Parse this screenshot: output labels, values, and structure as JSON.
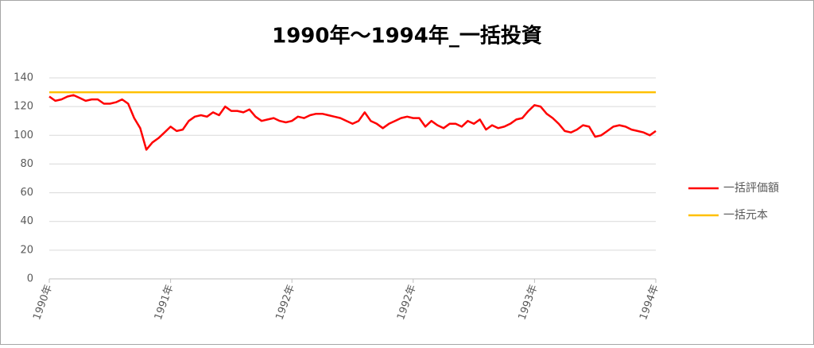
{
  "chart_data": {
    "type": "line",
    "title": "1990年～1994年_一括投資",
    "categories": [
      "1990年",
      null,
      null,
      null,
      null,
      null,
      null,
      null,
      null,
      null,
      null,
      null,
      null,
      null,
      null,
      null,
      null,
      null,
      null,
      null,
      "1991年",
      null,
      null,
      null,
      null,
      null,
      null,
      null,
      null,
      null,
      null,
      null,
      null,
      null,
      null,
      null,
      null,
      null,
      null,
      null,
      "1992年",
      null,
      null,
      null,
      null,
      null,
      null,
      null,
      null,
      null,
      null,
      null,
      null,
      null,
      null,
      null,
      null,
      null,
      null,
      null,
      "1992年",
      null,
      null,
      null,
      null,
      null,
      null,
      null,
      null,
      null,
      null,
      null,
      null,
      null,
      null,
      null,
      null,
      null,
      null,
      null,
      "1993年",
      null,
      null,
      null,
      null,
      null,
      null,
      null,
      null,
      null,
      null,
      null,
      null,
      null,
      null,
      null,
      null,
      null,
      null,
      null,
      "1994年"
    ],
    "series": [
      {
        "name": "一括評価額",
        "color": "#ff0000",
        "values": [
          127,
          124,
          125,
          127,
          128,
          126,
          124,
          125,
          125,
          122,
          122,
          123,
          125,
          122,
          112,
          105,
          90,
          95,
          98,
          102,
          106,
          103,
          104,
          110,
          113,
          114,
          113,
          116,
          114,
          120,
          117,
          117,
          116,
          118,
          113,
          110,
          111,
          112,
          110,
          109,
          110,
          113,
          112,
          114,
          115,
          115,
          114,
          113,
          112,
          110,
          108,
          110,
          116,
          110,
          108,
          105,
          108,
          110,
          112,
          113,
          112,
          112,
          106,
          110,
          107,
          105,
          108,
          108,
          106,
          110,
          108,
          111,
          104,
          107,
          105,
          106,
          108,
          111,
          112,
          117,
          121,
          120,
          115,
          112,
          108,
          103,
          102,
          104,
          107,
          106,
          99,
          100,
          103,
          106,
          107,
          106,
          104,
          103,
          102,
          100,
          103
        ]
      },
      {
        "name": "一括元本",
        "color": "#ffc000",
        "values": [
          130,
          130,
          130,
          130,
          130,
          130,
          130,
          130,
          130,
          130,
          130,
          130,
          130,
          130,
          130,
          130,
          130,
          130,
          130,
          130,
          130,
          130,
          130,
          130,
          130,
          130,
          130,
          130,
          130,
          130,
          130,
          130,
          130,
          130,
          130,
          130,
          130,
          130,
          130,
          130,
          130,
          130,
          130,
          130,
          130,
          130,
          130,
          130,
          130,
          130,
          130,
          130,
          130,
          130,
          130,
          130,
          130,
          130,
          130,
          130,
          130,
          130,
          130,
          130,
          130,
          130,
          130,
          130,
          130,
          130,
          130,
          130,
          130,
          130,
          130,
          130,
          130,
          130,
          130,
          130,
          130,
          130,
          130,
          130,
          130,
          130,
          130,
          130,
          130,
          130,
          130,
          130,
          130,
          130,
          130,
          130,
          130,
          130,
          130,
          130,
          130
        ]
      }
    ],
    "ylim": [
      0,
      140
    ],
    "yticks": [
      0,
      20,
      40,
      60,
      80,
      100,
      120,
      140
    ],
    "grid": true,
    "legend": "right"
  }
}
